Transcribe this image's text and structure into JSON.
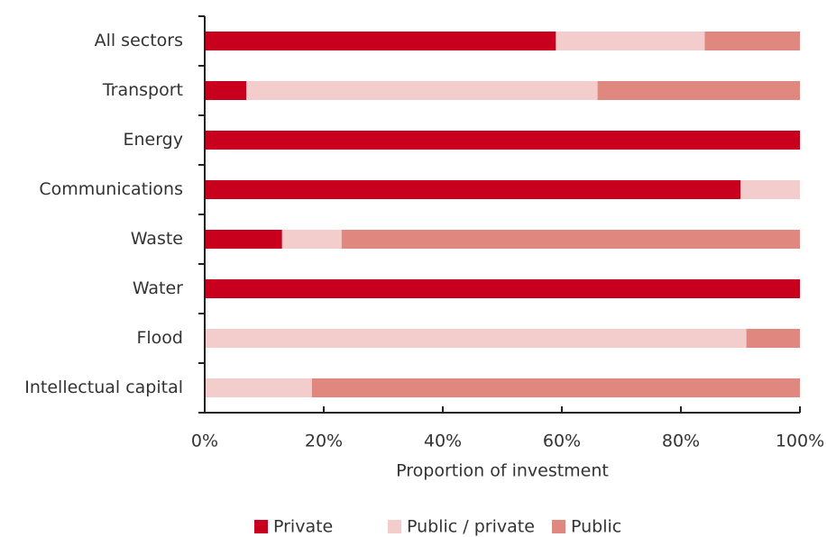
{
  "chart_data": {
    "type": "stacked_barh",
    "categories": [
      "All sectors",
      "Transport",
      "Energy",
      "Communications",
      "Waste",
      "Water",
      "Flood",
      "Intellectual capital"
    ],
    "series": [
      {
        "name": "Private",
        "color": "#c8001e",
        "values": [
          59,
          7,
          100,
          90,
          13,
          100,
          0,
          0
        ]
      },
      {
        "name": "Public / private",
        "color": "#f3cdcc",
        "values": [
          25,
          59,
          0,
          10,
          10,
          0,
          91,
          18
        ]
      },
      {
        "name": "Public",
        "color": "#e08880",
        "values": [
          16,
          34,
          0,
          0,
          77,
          0,
          9,
          82
        ]
      }
    ],
    "xlabel": "Proportion of investment",
    "xlim": [
      0,
      100
    ],
    "xticks": [
      {
        "value": 0,
        "label": "0%"
      },
      {
        "value": 20,
        "label": "20%"
      },
      {
        "value": 40,
        "label": "40%"
      },
      {
        "value": 60,
        "label": "60%"
      },
      {
        "value": 80,
        "label": "80%"
      },
      {
        "value": 100,
        "label": "100%"
      }
    ],
    "legend": "bottom"
  }
}
